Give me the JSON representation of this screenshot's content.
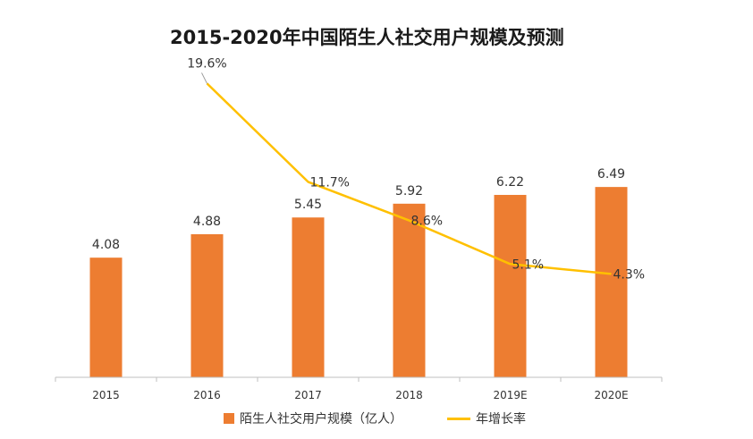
{
  "chart_data": {
    "type": "bar+line",
    "title": "2015-2020年中国陌生人社交用户规模及预测",
    "categories": [
      "2015",
      "2016",
      "2017",
      "2018",
      "2019E",
      "2020E"
    ],
    "series": [
      {
        "name": "陌生人社交用户规模（亿人）",
        "type": "bar",
        "axis": "left",
        "values": [
          4.08,
          4.88,
          5.45,
          5.92,
          6.22,
          6.49
        ],
        "labels": [
          "4.08",
          "4.88",
          "5.45",
          "5.92",
          "6.22",
          "6.49"
        ],
        "color": "#ED7D31"
      },
      {
        "name": "年增长率",
        "type": "line",
        "axis": "right",
        "values": [
          null,
          19.6,
          11.7,
          8.6,
          5.1,
          4.3
        ],
        "labels": [
          "",
          "19.6%",
          "11.7%",
          "8.6%",
          "5.1%",
          "4.3%"
        ],
        "color": "#FFC000"
      }
    ],
    "ylim": [
      0,
      7.0
    ],
    "y2lim": [
      -4,
      22
    ],
    "grid": false,
    "legend": "bottom"
  }
}
